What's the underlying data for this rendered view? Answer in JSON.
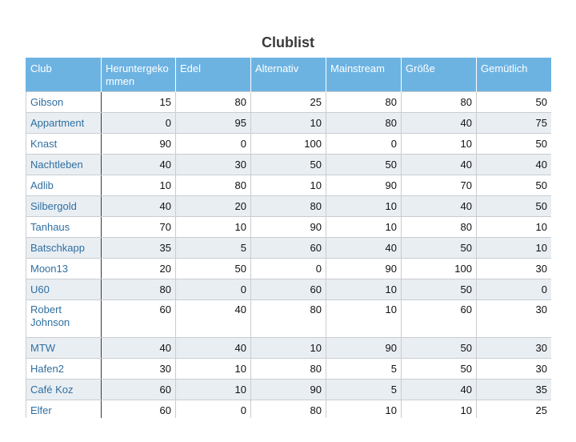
{
  "title": "Clublist",
  "columns": [
    "Club",
    "Heruntergekommen",
    "Edel",
    "Alternativ",
    "Mainstream",
    "Größe",
    "Gemütlich"
  ],
  "rows": [
    {
      "name": "Gibson",
      "values": [
        "15",
        "80",
        "25",
        "80",
        "80",
        "50"
      ]
    },
    {
      "name": "Appartment",
      "values": [
        "0",
        "95",
        "10",
        "80",
        "40",
        "75"
      ]
    },
    {
      "name": "Knast",
      "values": [
        "90",
        "0",
        "100",
        "0",
        "10",
        "50"
      ]
    },
    {
      "name": "Nachtleben",
      "values": [
        "40",
        "30",
        "50",
        "50",
        "40",
        "40"
      ]
    },
    {
      "name": "Adlib",
      "values": [
        "10",
        "80",
        "10",
        "90",
        "70",
        "50"
      ]
    },
    {
      "name": "Silbergold",
      "values": [
        "40",
        "20",
        "80",
        "10",
        "40",
        "50"
      ]
    },
    {
      "name": "Tanhaus",
      "values": [
        "70",
        "10",
        "90",
        "10",
        "80",
        "10"
      ]
    },
    {
      "name": "Batschkapp",
      "values": [
        "35",
        "5",
        "60",
        "40",
        "50",
        "10"
      ]
    },
    {
      "name": "Moon13",
      "values": [
        "20",
        "50",
        "0",
        "90",
        "100",
        "30"
      ]
    },
    {
      "name": "U60",
      "values": [
        "80",
        "0",
        "60",
        "10",
        "50",
        "0"
      ]
    },
    {
      "name": "Robert Johnson",
      "values": [
        "60",
        "40",
        "80",
        "10",
        "60",
        "30"
      ]
    },
    {
      "name": "MTW",
      "values": [
        "40",
        "40",
        "10",
        "90",
        "50",
        "30"
      ]
    },
    {
      "name": "Hafen2",
      "values": [
        "30",
        "10",
        "80",
        "5",
        "50",
        "30"
      ]
    },
    {
      "name": "Café Koz",
      "values": [
        "60",
        "10",
        "90",
        "5",
        "40",
        "35"
      ]
    },
    {
      "name": "Elfer",
      "values": [
        "60",
        "0",
        "80",
        "10",
        "10",
        "25"
      ]
    }
  ]
}
